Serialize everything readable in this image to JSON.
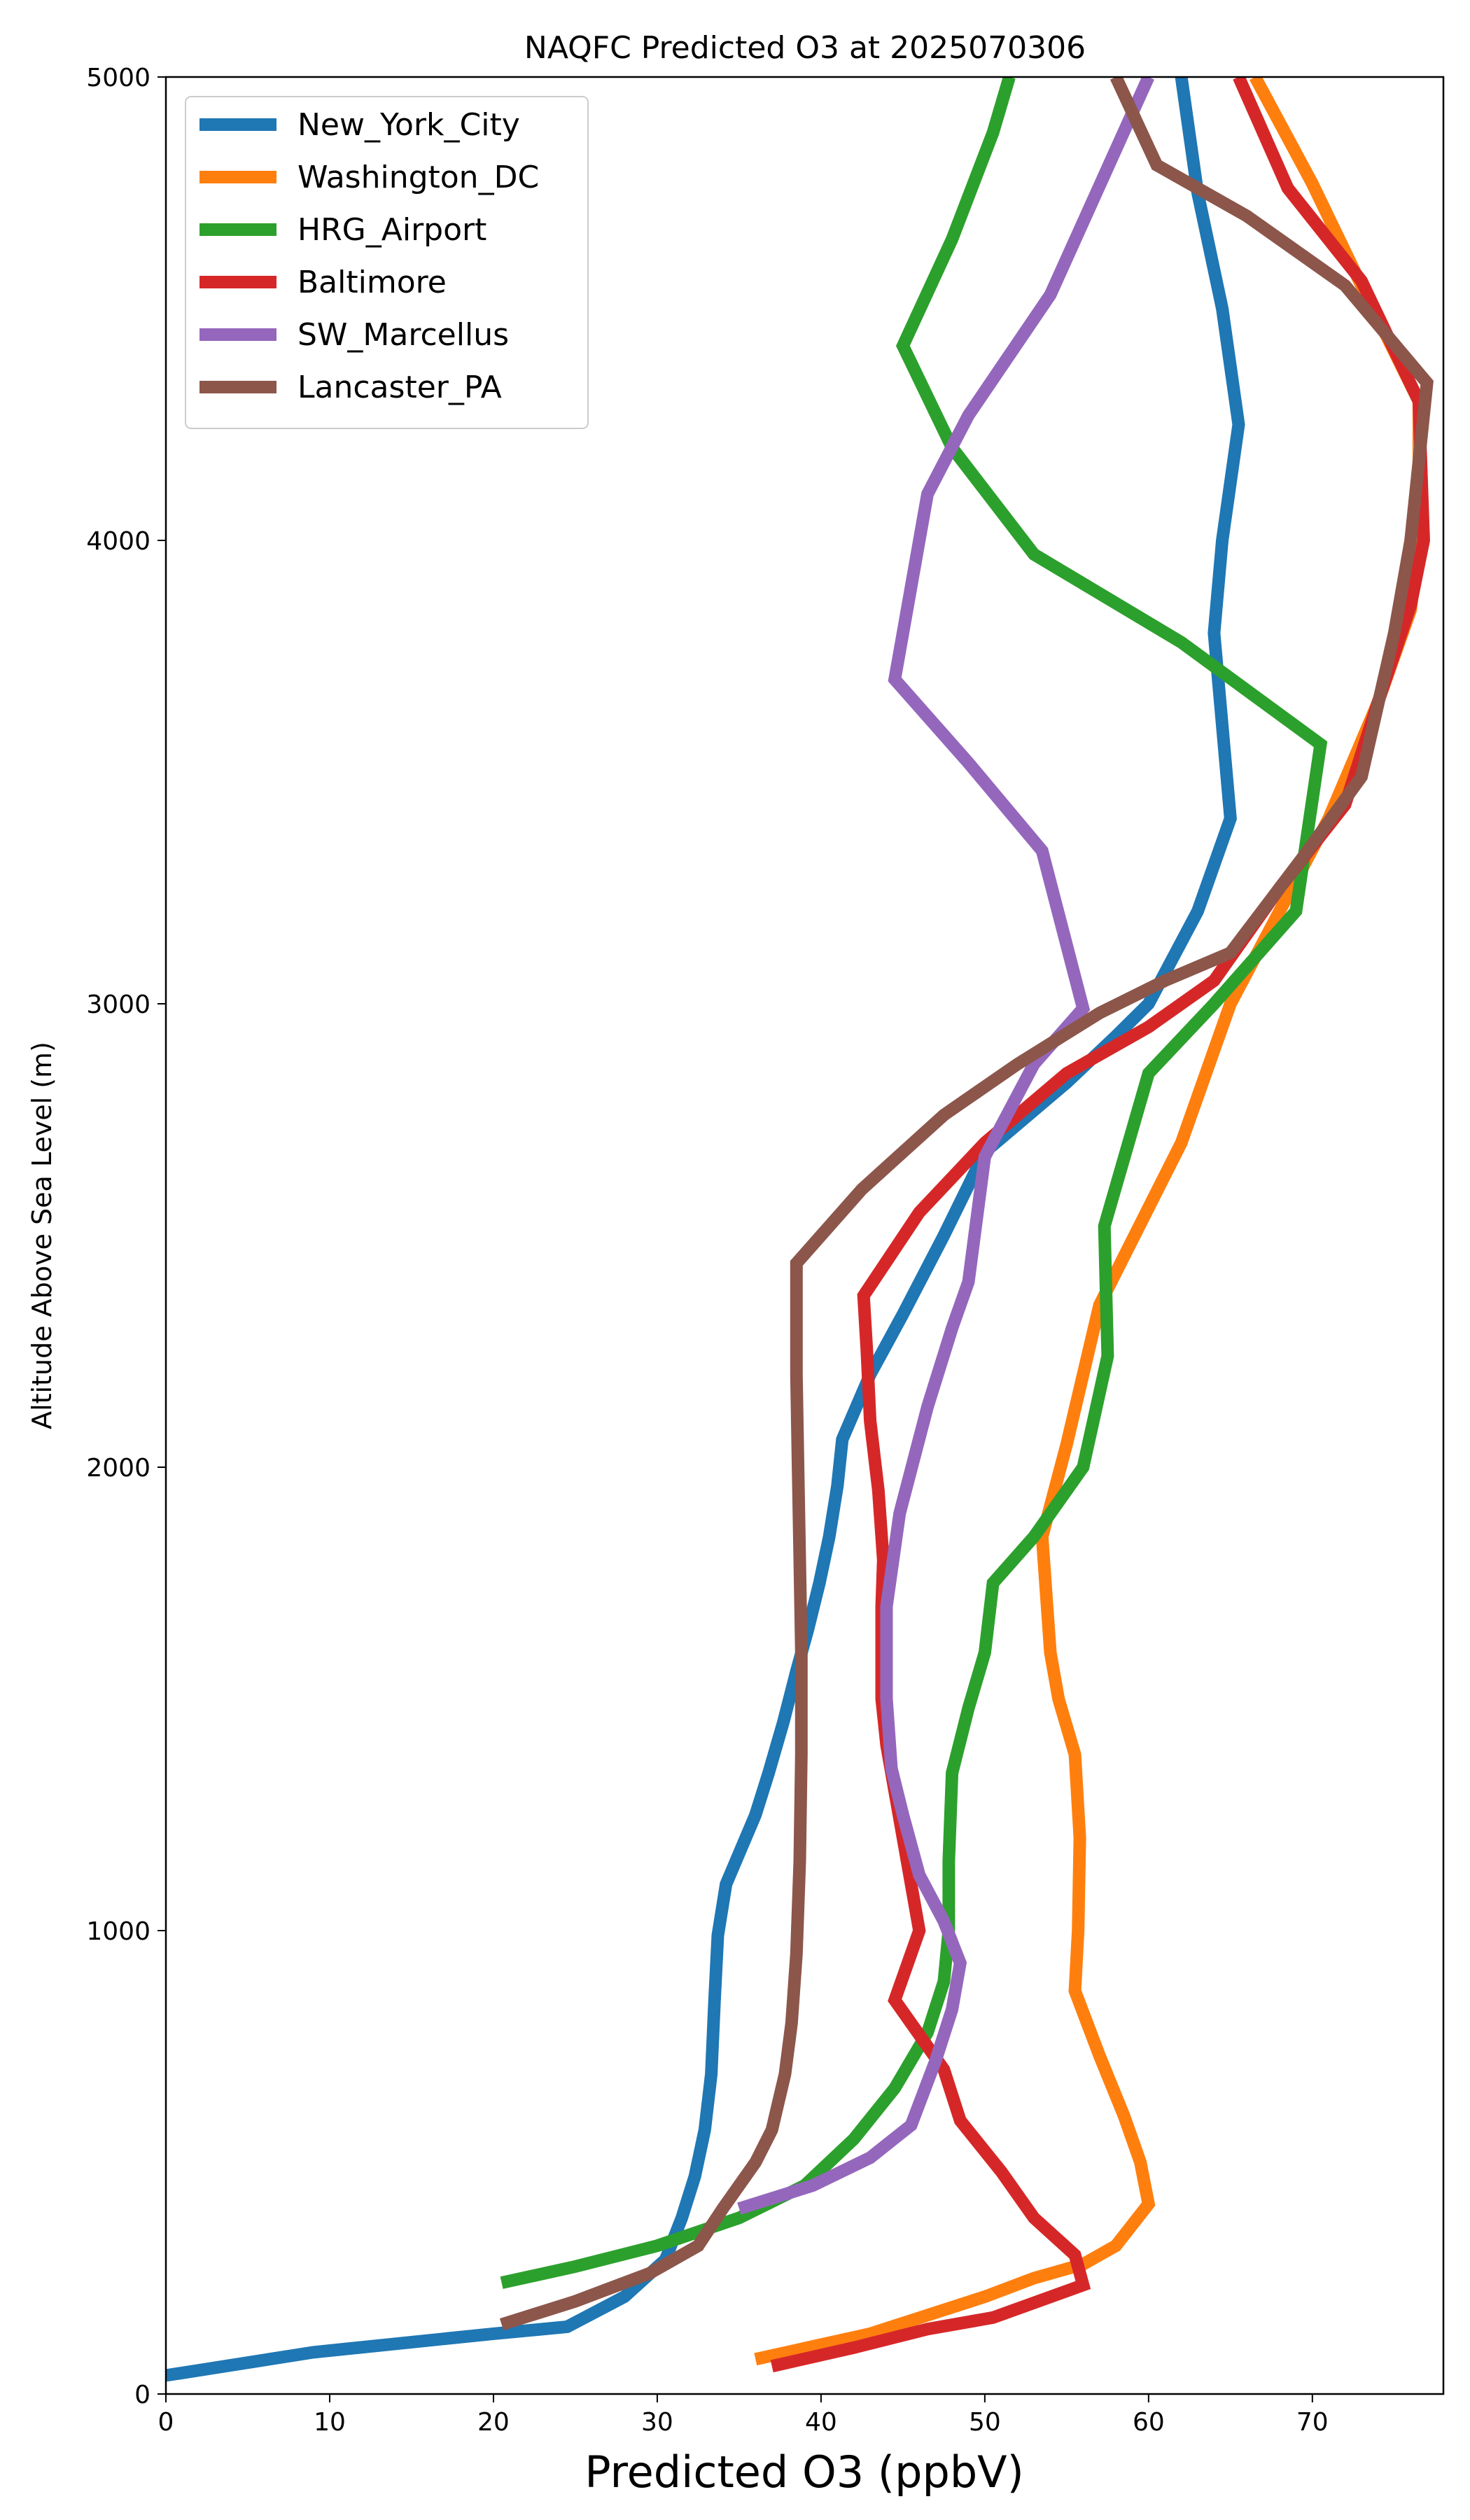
{
  "chart_data": {
    "type": "line",
    "title": "NAQFC Predicted O3 at 2025070306",
    "xlabel": "Predicted O3 (ppbV)",
    "ylabel": "Altitude Above Sea Level (m)",
    "xlim": [
      0,
      78
    ],
    "ylim": [
      0,
      5000
    ],
    "xticks": [
      "0",
      "10",
      "20",
      "30",
      "40",
      "50",
      "60",
      "70"
    ],
    "yticks": [
      "0",
      "1000",
      "2000",
      "3000",
      "4000",
      "5000"
    ],
    "grid": false,
    "legend_position": "top-left",
    "series": [
      {
        "name": "New_York_City",
        "color": "#1f77b4",
        "points": [
          [
            0,
            40
          ],
          [
            9,
            90
          ],
          [
            20,
            130
          ],
          [
            24.5,
            145
          ],
          [
            28,
            210
          ],
          [
            30.5,
            290
          ],
          [
            31.5,
            380
          ],
          [
            32.3,
            470
          ],
          [
            32.9,
            570
          ],
          [
            33.3,
            690
          ],
          [
            33.5,
            850
          ],
          [
            33.7,
            990
          ],
          [
            34.2,
            1100
          ],
          [
            34.8,
            1150
          ],
          [
            36,
            1250
          ],
          [
            36.8,
            1340
          ],
          [
            37.7,
            1450
          ],
          [
            38.5,
            1560
          ],
          [
            39.2,
            1650
          ],
          [
            39.9,
            1750
          ],
          [
            40.5,
            1850
          ],
          [
            41,
            1960
          ],
          [
            41.3,
            2060
          ],
          [
            43,
            2200
          ],
          [
            45,
            2330
          ],
          [
            47.5,
            2500
          ],
          [
            50,
            2680
          ],
          [
            55,
            2830
          ],
          [
            58,
            2930
          ],
          [
            60,
            3000
          ],
          [
            63,
            3200
          ],
          [
            65,
            3400
          ],
          [
            64.5,
            3600
          ],
          [
            64,
            3800
          ],
          [
            64.5,
            4000
          ],
          [
            65.5,
            4250
          ],
          [
            64.5,
            4500
          ],
          [
            63,
            4750
          ],
          [
            62,
            5000
          ]
        ]
      },
      {
        "name": "Washington_DC",
        "color": "#ff7f0e",
        "points": [
          [
            36,
            75
          ],
          [
            43,
            130
          ],
          [
            50,
            210
          ],
          [
            53,
            250
          ],
          [
            56,
            280
          ],
          [
            58,
            320
          ],
          [
            60,
            410
          ],
          [
            59.5,
            500
          ],
          [
            58.5,
            600
          ],
          [
            57,
            730
          ],
          [
            55.5,
            870
          ],
          [
            55.7,
            1000
          ],
          [
            55.8,
            1200
          ],
          [
            55.5,
            1380
          ],
          [
            54.5,
            1500
          ],
          [
            54,
            1600
          ],
          [
            53.5,
            1850
          ],
          [
            55,
            2050
          ],
          [
            57,
            2350
          ],
          [
            62,
            2700
          ],
          [
            65,
            3000
          ],
          [
            68,
            3200
          ],
          [
            71,
            3400
          ],
          [
            74,
            3650
          ],
          [
            76,
            3850
          ],
          [
            76.5,
            4000
          ],
          [
            76.5,
            4300
          ],
          [
            73,
            4550
          ],
          [
            70,
            4770
          ],
          [
            66.5,
            5000
          ]
        ]
      },
      {
        "name": "HRG_Airport",
        "color": "#2ca02c",
        "points": [
          [
            20.5,
            240
          ],
          [
            25,
            275
          ],
          [
            30,
            320
          ],
          [
            35,
            380
          ],
          [
            39,
            450
          ],
          [
            42,
            550
          ],
          [
            44.5,
            660
          ],
          [
            46.5,
            780
          ],
          [
            47.5,
            890
          ],
          [
            47.8,
            1000
          ],
          [
            47.8,
            1150
          ],
          [
            48,
            1340
          ],
          [
            49,
            1480
          ],
          [
            50,
            1600
          ],
          [
            50.5,
            1750
          ],
          [
            53,
            1850
          ],
          [
            56,
            2000
          ],
          [
            57.5,
            2240
          ],
          [
            57.3,
            2520
          ],
          [
            60,
            2850
          ],
          [
            64,
            3000
          ],
          [
            69,
            3200
          ],
          [
            70.5,
            3560
          ],
          [
            62,
            3780
          ],
          [
            53,
            3970
          ],
          [
            48,
            4200
          ],
          [
            45,
            4420
          ],
          [
            48,
            4650
          ],
          [
            50.5,
            4880
          ],
          [
            51.5,
            5000
          ]
        ]
      },
      {
        "name": "Baltimore",
        "color": "#d62728",
        "points": [
          [
            37,
            60
          ],
          [
            42,
            100
          ],
          [
            46.5,
            140
          ],
          [
            50.5,
            165
          ],
          [
            56,
            235
          ],
          [
            55.5,
            300
          ],
          [
            53,
            380
          ],
          [
            51,
            480
          ],
          [
            48.5,
            590
          ],
          [
            47.5,
            700
          ],
          [
            44.5,
            850
          ],
          [
            46,
            1000
          ],
          [
            45.5,
            1100
          ],
          [
            45,
            1200
          ],
          [
            44.5,
            1300
          ],
          [
            44,
            1400
          ],
          [
            43.7,
            1500
          ],
          [
            43.7,
            1600
          ],
          [
            43.7,
            1700
          ],
          [
            43.8,
            1800
          ],
          [
            43.5,
            1950
          ],
          [
            43,
            2100
          ],
          [
            42.8,
            2250
          ],
          [
            42.6,
            2370
          ],
          [
            46,
            2550
          ],
          [
            50,
            2700
          ],
          [
            55,
            2850
          ],
          [
            60,
            2950
          ],
          [
            64,
            3050
          ],
          [
            68,
            3250
          ],
          [
            72,
            3430
          ],
          [
            74,
            3650
          ],
          [
            76,
            3860
          ],
          [
            76.8,
            4000
          ],
          [
            76.5,
            4300
          ],
          [
            73,
            4560
          ],
          [
            68.5,
            4760
          ],
          [
            65.5,
            5000
          ]
        ]
      },
      {
        "name": "SW_Marcellus",
        "color": "#9467bd",
        "points": [
          [
            35,
            400
          ],
          [
            39.5,
            450
          ],
          [
            43,
            510
          ],
          [
            45.5,
            580
          ],
          [
            47,
            720
          ],
          [
            48,
            830
          ],
          [
            48.5,
            930
          ],
          [
            47.5,
            1020
          ],
          [
            46,
            1120
          ],
          [
            45,
            1250
          ],
          [
            44.3,
            1350
          ],
          [
            44,
            1500
          ],
          [
            44,
            1700
          ],
          [
            44.8,
            1900
          ],
          [
            46.5,
            2130
          ],
          [
            48,
            2300
          ],
          [
            49,
            2400
          ],
          [
            50,
            2670
          ],
          [
            53,
            2870
          ],
          [
            56,
            2990
          ],
          [
            53.5,
            3330
          ],
          [
            49,
            3520
          ],
          [
            44.5,
            3700
          ],
          [
            45.5,
            3900
          ],
          [
            46.5,
            4100
          ],
          [
            49,
            4270
          ],
          [
            54,
            4530
          ],
          [
            60,
            5000
          ]
        ]
      },
      {
        "name": "Lancaster_PA",
        "color": "#8c564b",
        "points": [
          [
            20.5,
            150
          ],
          [
            25,
            200
          ],
          [
            29.5,
            260
          ],
          [
            32.5,
            320
          ],
          [
            34,
            400
          ],
          [
            36,
            500
          ],
          [
            37,
            570
          ],
          [
            37.8,
            690
          ],
          [
            38.2,
            800
          ],
          [
            38.5,
            950
          ],
          [
            38.7,
            1150
          ],
          [
            38.8,
            1380
          ],
          [
            38.8,
            1600
          ],
          [
            38.7,
            1800
          ],
          [
            38.6,
            2000
          ],
          [
            38.5,
            2200
          ],
          [
            38.5,
            2440
          ],
          [
            42.5,
            2600
          ],
          [
            47.5,
            2760
          ],
          [
            52,
            2870
          ],
          [
            57,
            2980
          ],
          [
            61,
            3050
          ],
          [
            65,
            3110
          ],
          [
            69.5,
            3320
          ],
          [
            73,
            3490
          ],
          [
            75,
            3800
          ],
          [
            76,
            4000
          ],
          [
            77,
            4340
          ],
          [
            72,
            4550
          ],
          [
            66,
            4700
          ],
          [
            60.5,
            4810
          ],
          [
            58,
            5000
          ]
        ]
      }
    ]
  }
}
